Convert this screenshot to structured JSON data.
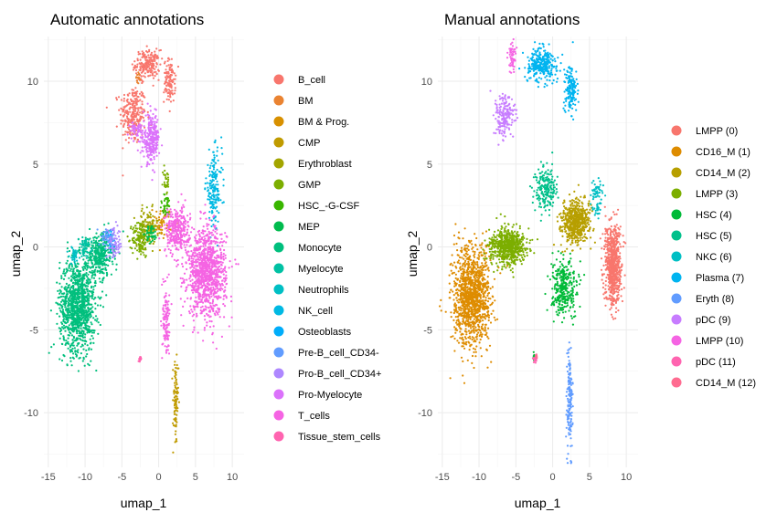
{
  "chart_data": [
    {
      "type": "scatter",
      "title": "Automatic annotations",
      "xlabel": "umap_1",
      "ylabel": "umap_2",
      "xlim": [
        -15.6,
        11.6
      ],
      "ylim": [
        -13.3,
        12.7
      ],
      "xticks": [
        -15,
        -10,
        -5,
        0,
        5,
        10
      ],
      "yticks": [
        -10,
        -5,
        0,
        5,
        10
      ],
      "grid": true,
      "legend_position": "right",
      "series": [
        {
          "name": "B_cell",
          "color": "#F8766D",
          "clusters": [
            [
              -3.5,
              8.0,
              1.6,
              1.6,
              260
            ],
            [
              -1.5,
              11.0,
              1.5,
              0.8,
              200
            ],
            [
              1.5,
              10.0,
              0.7,
              1.2,
              120
            ]
          ]
        },
        {
          "name": "BM",
          "color": "#EA8331",
          "clusters": [
            [
              -2.8,
              10.2,
              0.3,
              0.3,
              15
            ]
          ]
        },
        {
          "name": "BM & Prog.",
          "color": "#D89000",
          "clusters": [
            [
              0.5,
              1.5,
              1.2,
              0.8,
              60
            ]
          ]
        },
        {
          "name": "CMP",
          "color": "#C09B00",
          "clusters": [
            [
              2.3,
              -9.5,
              0.35,
              2.5,
              90
            ]
          ]
        },
        {
          "name": "Erythroblast",
          "color": "#A3A500",
          "clusters": [
            [
              -1.5,
              1.2,
              1.3,
              1.0,
              110
            ]
          ]
        },
        {
          "name": "GMP",
          "color": "#7CAE00",
          "clusters": [
            [
              -2.5,
              0.5,
              1.0,
              1.0,
              140
            ],
            [
              1.0,
              4.0,
              0.4,
              0.8,
              30
            ]
          ]
        },
        {
          "name": "HSC_-G-CSF",
          "color": "#39B600",
          "clusters": [
            [
              1.0,
              2.5,
              0.8,
              0.6,
              40
            ]
          ]
        },
        {
          "name": "MEP",
          "color": "#00BB4E",
          "clusters": [
            [
              -1.0,
              0.8,
              0.7,
              0.5,
              50
            ]
          ]
        },
        {
          "name": "Monocyte",
          "color": "#00BF7D",
          "clusters": [
            [
              -11.0,
              -3.5,
              2.2,
              2.5,
              1100
            ],
            [
              -8.0,
              -0.5,
              1.6,
              1.2,
              350
            ]
          ]
        },
        {
          "name": "Myelocyte",
          "color": "#00C1A3",
          "clusters": [
            [
              -10.0,
              0.0,
              0.8,
              0.5,
              60
            ]
          ]
        },
        {
          "name": "Neutrophils",
          "color": "#00BFC4",
          "clusters": [
            [
              -11.5,
              -0.5,
              0.6,
              0.5,
              40
            ]
          ]
        },
        {
          "name": "NK_cell",
          "color": "#00B9E3",
          "clusters": [
            [
              7.5,
              3.5,
              1.0,
              2.0,
              180
            ]
          ]
        },
        {
          "name": "Osteoblasts",
          "color": "#00ADFA",
          "clusters": [
            [
              -6.5,
              0.5,
              0.5,
              0.5,
              30
            ]
          ]
        },
        {
          "name": "Pre-B_cell_CD34-",
          "color": "#619CFF",
          "clusters": [
            [
              -7.0,
              0.5,
              0.8,
              0.6,
              50
            ]
          ]
        },
        {
          "name": "Pro-B_cell_CD34+",
          "color": "#AE87FF",
          "clusters": [
            [
              -6.0,
              0.2,
              1.0,
              0.8,
              70
            ]
          ]
        },
        {
          "name": "Pro-Myelocyte",
          "color": "#DB72FB",
          "clusters": [
            [
              -1.0,
              6.5,
              1.0,
              1.3,
              260
            ],
            [
              -3.0,
              7.0,
              0.8,
              0.5,
              50
            ]
          ]
        },
        {
          "name": "T_cells",
          "color": "#F564E3",
          "clusters": [
            [
              6.5,
              -1.5,
              2.4,
              2.4,
              1100
            ],
            [
              2.5,
              1.0,
              1.5,
              1.2,
              300
            ],
            [
              1.0,
              -4.5,
              0.4,
              2.0,
              120
            ]
          ]
        },
        {
          "name": "Tissue_stem_cells",
          "color": "#FF64B0",
          "clusters": [
            [
              -2.5,
              -6.7,
              0.2,
              0.2,
              12
            ]
          ]
        }
      ]
    },
    {
      "type": "scatter",
      "title": "Manual annotations",
      "xlabel": "umap_1",
      "ylabel": "umap_2",
      "xlim": [
        -15.6,
        11.6
      ],
      "ylim": [
        -13.3,
        12.7
      ],
      "xticks": [
        -15,
        -10,
        -5,
        0,
        5,
        10
      ],
      "yticks": [
        -10,
        -5,
        0,
        5,
        10
      ],
      "grid": true,
      "legend_position": "right",
      "series": [
        {
          "name": "LMPP (0)",
          "color": "#F8766D",
          "clusters": [
            [
              8.2,
              -1.0,
              1.0,
              2.2,
              700
            ]
          ]
        },
        {
          "name": "CD16_M (1)",
          "color": "#DE8C00",
          "clusters": [
            [
              -11.0,
              -3.0,
              2.2,
              2.6,
              1200
            ]
          ]
        },
        {
          "name": "CD14_M (2)",
          "color": "#B79F00",
          "clusters": [
            [
              3.0,
              1.5,
              1.8,
              1.2,
              550
            ]
          ]
        },
        {
          "name": "LMPP (3)",
          "color": "#7CAE00",
          "clusters": [
            [
              -6.0,
              0.0,
              2.2,
              1.0,
              650
            ]
          ]
        },
        {
          "name": "HSC (4)",
          "color": "#00BA38",
          "clusters": [
            [
              1.5,
              -2.5,
              1.6,
              1.6,
              320
            ],
            [
              -2.5,
              -6.7,
              0.2,
              0.2,
              10
            ]
          ]
        },
        {
          "name": "HSC (5)",
          "color": "#00C08B",
          "clusters": [
            [
              -1.0,
              3.5,
              1.5,
              1.2,
              200
            ]
          ]
        },
        {
          "name": "NKC (6)",
          "color": "#00BFC4",
          "clusters": [
            [
              6.0,
              3.0,
              0.6,
              1.2,
              70
            ]
          ]
        },
        {
          "name": "Plasma (7)",
          "color": "#00B4F0",
          "clusters": [
            [
              -1.5,
              11.0,
              1.8,
              0.9,
              300
            ],
            [
              2.5,
              9.5,
              0.8,
              1.5,
              150
            ]
          ]
        },
        {
          "name": "Eryth (8)",
          "color": "#619CFF",
          "clusters": [
            [
              2.3,
              -9.0,
              0.35,
              2.8,
              160
            ]
          ]
        },
        {
          "name": "pDC (9)",
          "color": "#C77CFF",
          "clusters": [
            [
              -6.5,
              8.0,
              1.2,
              1.2,
              180
            ]
          ]
        },
        {
          "name": "LMPP (10)",
          "color": "#F564E3",
          "clusters": [
            [
              -5.5,
              11.5,
              0.4,
              0.7,
              60
            ]
          ]
        },
        {
          "name": "pDC (11)",
          "color": "#FF64B0",
          "clusters": [
            [
              -2.4,
              -6.8,
              0.2,
              0.2,
              15
            ]
          ]
        },
        {
          "name": "CD14_M (12)",
          "color": "#FF6C91",
          "clusters": [
            [
              -2.2,
              -6.6,
              0.15,
              0.15,
              8
            ]
          ]
        }
      ]
    }
  ]
}
